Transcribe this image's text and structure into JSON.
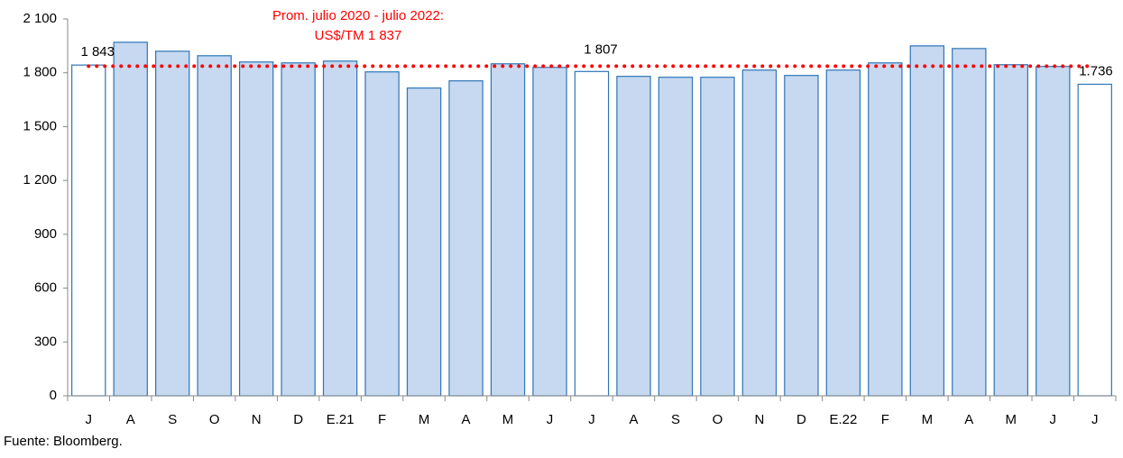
{
  "chart_data": {
    "type": "bar",
    "categories": [
      "J",
      "A",
      "S",
      "O",
      "N",
      "D",
      "E.21",
      "F",
      "M",
      "A",
      "M",
      "J",
      "J",
      "A",
      "S",
      "O",
      "N",
      "D",
      "E.22",
      "F",
      "M",
      "A",
      "M",
      "J",
      "J"
    ],
    "values": [
      1843,
      1970,
      1920,
      1895,
      1860,
      1855,
      1865,
      1805,
      1715,
      1755,
      1850,
      1830,
      1807,
      1780,
      1775,
      1775,
      1815,
      1785,
      1815,
      1855,
      1950,
      1935,
      1845,
      1835,
      1736
    ],
    "value_labels": [
      "1 843",
      null,
      null,
      null,
      null,
      null,
      null,
      null,
      null,
      null,
      null,
      null,
      "1 807",
      null,
      null,
      null,
      null,
      null,
      null,
      null,
      null,
      null,
      null,
      null,
      "1.736"
    ],
    "colors": [
      "#ffffff",
      "#c6d9f1",
      "#c6d9f1",
      "#c6d9f1",
      "#c6d9f1",
      "#c6d9f1",
      "#c6d9f1",
      "#c6d9f1",
      "#c6d9f1",
      "#c6d9f1",
      "#c6d9f1",
      "#c6d9f1",
      "#ffffff",
      "#c6d9f1",
      "#c6d9f1",
      "#c6d9f1",
      "#c6d9f1",
      "#c6d9f1",
      "#c6d9f1",
      "#c6d9f1",
      "#c6d9f1",
      "#c6d9f1",
      "#c6d9f1",
      "#c6d9f1",
      "#ffffff"
    ],
    "edge_color": "#2e75b6",
    "ylim": [
      0,
      2100
    ],
    "yticks": [
      0,
      300,
      600,
      900,
      {
        "value": 1200,
        "label": "1 200"
      },
      {
        "value": 1500,
        "label": "1 500"
      },
      {
        "value": 1800,
        "label": "1 800"
      },
      {
        "value": 2100,
        "label": "2 100"
      }
    ],
    "grid": false,
    "average": {
      "value": 1837,
      "label": [
        "Prom. julio 2020 - julio 2022:",
        "US$/TM 1 837"
      ],
      "color": "#ff0000"
    },
    "source": "Fuente: Bloomberg."
  }
}
